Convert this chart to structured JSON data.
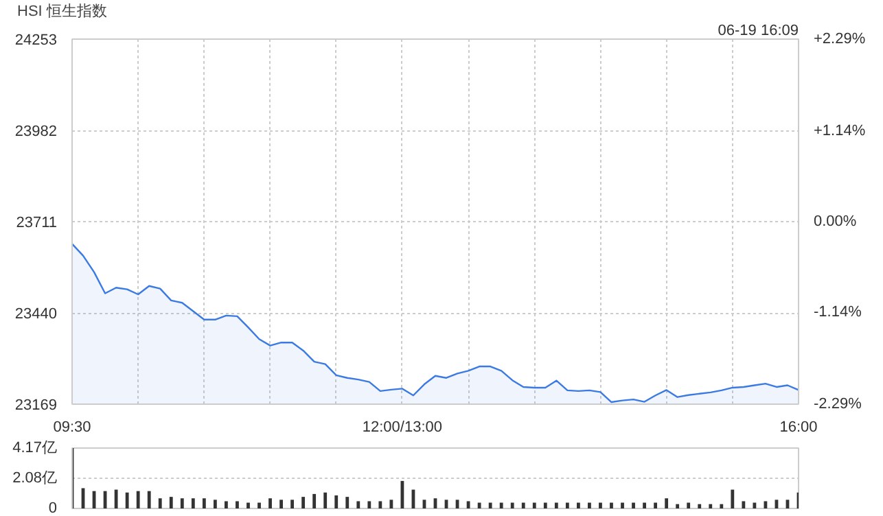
{
  "chart_data": [
    {
      "type": "area",
      "title": "HSI 恒生指数",
      "annotations": [
        "06-19 16:09"
      ],
      "categories": [
        "09:30",
        null,
        null,
        null,
        null,
        null,
        null,
        null,
        null,
        null,
        null,
        null,
        null,
        null,
        null,
        null,
        null,
        null,
        null,
        null,
        null,
        null,
        null,
        null,
        null,
        null,
        null,
        null,
        null,
        null,
        "12:00/13:00",
        null,
        null,
        null,
        null,
        null,
        null,
        null,
        null,
        null,
        null,
        null,
        null,
        null,
        null,
        null,
        null,
        null,
        null,
        null,
        null,
        null,
        null,
        null,
        null,
        null,
        null,
        null,
        null,
        null,
        null,
        null,
        null,
        null,
        null,
        null,
        "16:00"
      ],
      "series": [
        {
          "color": "#3b7ae3",
          "values": [
            23645,
            23610,
            23561,
            23498,
            23515,
            23510,
            23495,
            23520,
            23512,
            23477,
            23470,
            23445,
            23420,
            23420,
            23432,
            23430,
            23397,
            23362,
            23343,
            23352,
            23352,
            23328,
            23295,
            23288,
            23255,
            23247,
            23242,
            23235,
            23208,
            23212,
            23215,
            23195,
            23228,
            23253,
            23247,
            23260,
            23268,
            23281,
            23281,
            23268,
            23240,
            23220,
            23218,
            23218,
            23239,
            23210,
            23208,
            23210,
            23205,
            23175,
            23180,
            23183,
            23176,
            23195,
            23211,
            23190,
            23196,
            23200,
            23204,
            23210,
            23218,
            23220,
            23225,
            23230,
            23220,
            23225,
            23211
          ]
        }
      ],
      "ylim": [
        23169,
        24253
      ],
      "yticks": [
        23169,
        23440,
        23711,
        23982,
        24253
      ],
      "y2lim": [
        -2.29,
        2.29
      ],
      "y2ticks": [
        {
          "value": -2.29,
          "label": "-2.29%"
        },
        {
          "value": -1.14,
          "label": "-1.14%"
        },
        {
          "value": 0,
          "label": "0.00%"
        },
        {
          "value": 1.14,
          "label": "+1.14%"
        },
        {
          "value": 2.29,
          "label": "+2.29%"
        }
      ],
      "grid": true
    },
    {
      "type": "bar",
      "categories": [
        null,
        null,
        null,
        null,
        null,
        null,
        null,
        null,
        null,
        null,
        null,
        null,
        null,
        null,
        null,
        null,
        null,
        null,
        null,
        null,
        null,
        null,
        null,
        null,
        null,
        null,
        null,
        null,
        null,
        null,
        null,
        null,
        null,
        null,
        null,
        null,
        null,
        null,
        null,
        null,
        null,
        null,
        null,
        null,
        null,
        null,
        null,
        null,
        null,
        null,
        null,
        null,
        null,
        null,
        null,
        null,
        null,
        null,
        null,
        null,
        null,
        null,
        null,
        null,
        null,
        null,
        null
      ],
      "series": [
        {
          "color": "#333333",
          "values": [
            4.17,
            1.4,
            1.2,
            1.2,
            1.3,
            1.1,
            1.2,
            1.2,
            0.7,
            0.8,
            0.7,
            0.7,
            0.7,
            0.6,
            0.5,
            0.5,
            0.4,
            0.4,
            0.7,
            0.6,
            0.6,
            0.8,
            1.0,
            1.1,
            0.9,
            0.8,
            0.5,
            0.5,
            0.5,
            0.6,
            1.9,
            1.3,
            0.6,
            0.7,
            0.6,
            0.6,
            0.5,
            0.4,
            0.4,
            0.4,
            0.4,
            0.4,
            0.4,
            0.4,
            0.4,
            0.4,
            0.4,
            0.4,
            0.4,
            0.4,
            0.4,
            0.4,
            0.4,
            0.4,
            0.7,
            0.3,
            0.4,
            0.3,
            0.3,
            0.3,
            1.3,
            0.5,
            0.4,
            0.5,
            0.6,
            0.6,
            1.1
          ]
        }
      ],
      "ylim": [
        0,
        4.17
      ],
      "yticks": [
        0,
        {
          "value": 2.08,
          "label": "2.08亿"
        },
        {
          "value": 4.17,
          "label": "4.17亿"
        }
      ],
      "tick_labels": "y",
      "grid": "y"
    }
  ]
}
